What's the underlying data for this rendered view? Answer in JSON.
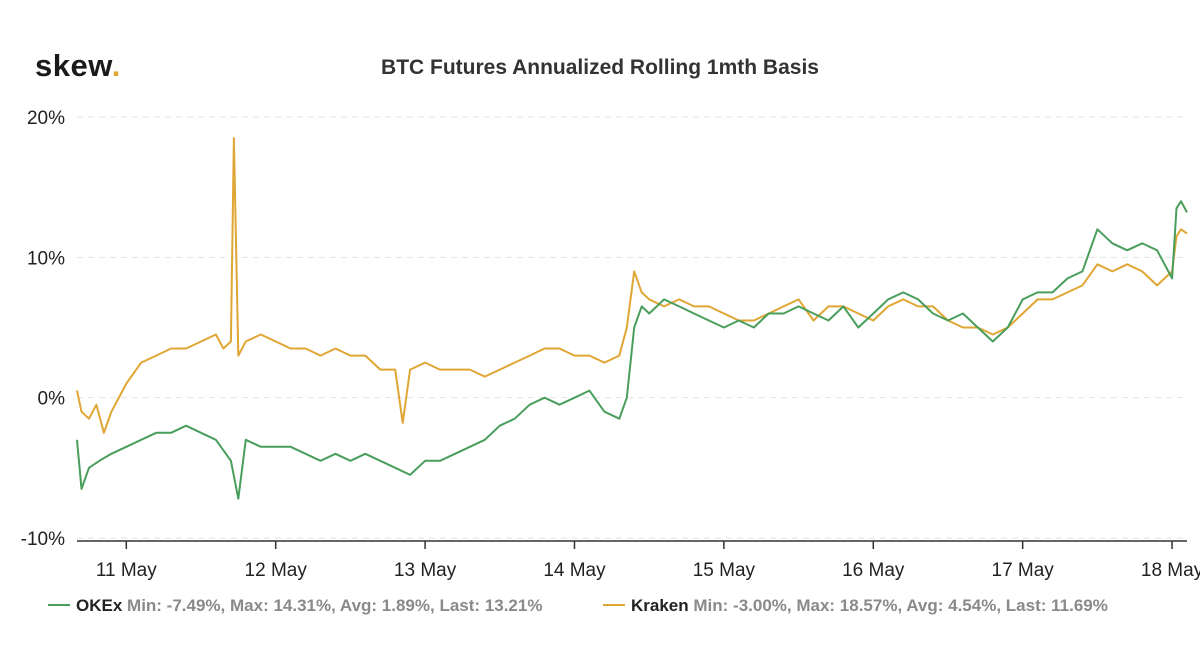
{
  "logo": {
    "text": "skew",
    "dot": "."
  },
  "chart_data": {
    "type": "line",
    "title": "BTC Futures Annualized Rolling 1mth Basis",
    "xlabel": "",
    "ylabel": "",
    "ylim": [
      -10,
      20
    ],
    "yticks": [
      -10,
      0,
      10,
      20
    ],
    "ytick_labels": [
      "-10%",
      "0%",
      "10%",
      "20%"
    ],
    "xlim": [
      -0.33,
      7.1
    ],
    "xticks": [
      0,
      1,
      2,
      3,
      4,
      5,
      6,
      7
    ],
    "xtick_labels": [
      "11 May",
      "12 May",
      "13 May",
      "14 May",
      "15 May",
      "16 May",
      "17 May",
      "18 May"
    ],
    "x_unit": "days from 11 May 00:00",
    "grid": "horizontal dashed",
    "legend_position": "bottom",
    "series": [
      {
        "name": "OKEx",
        "color": "#4a9e5c",
        "stats": "Min: -7.49%, Max: 14.31%, Avg: 1.89%, Last: 13.21%",
        "x": [
          -0.33,
          -0.3,
          -0.25,
          -0.18,
          -0.1,
          0.0,
          0.1,
          0.2,
          0.3,
          0.4,
          0.5,
          0.6,
          0.7,
          0.75,
          0.8,
          0.9,
          1.0,
          1.1,
          1.2,
          1.3,
          1.4,
          1.5,
          1.6,
          1.7,
          1.8,
          1.9,
          2.0,
          2.1,
          2.2,
          2.3,
          2.4,
          2.5,
          2.6,
          2.7,
          2.8,
          2.9,
          3.0,
          3.1,
          3.2,
          3.3,
          3.35,
          3.4,
          3.45,
          3.5,
          3.6,
          3.7,
          3.8,
          3.9,
          4.0,
          4.1,
          4.2,
          4.3,
          4.4,
          4.5,
          4.6,
          4.7,
          4.8,
          4.9,
          5.0,
          5.1,
          5.2,
          5.3,
          5.4,
          5.5,
          5.6,
          5.7,
          5.8,
          5.9,
          6.0,
          6.1,
          6.2,
          6.3,
          6.4,
          6.5,
          6.6,
          6.7,
          6.8,
          6.9,
          7.0,
          7.03,
          7.06,
          7.1
        ],
        "y": [
          -3.0,
          -6.5,
          -5.0,
          -4.5,
          -4.0,
          -3.5,
          -3.0,
          -2.5,
          -2.5,
          -2.0,
          -2.5,
          -3.0,
          -4.5,
          -7.2,
          -3.0,
          -3.5,
          -3.5,
          -3.5,
          -4.0,
          -4.5,
          -4.0,
          -4.5,
          -4.0,
          -4.5,
          -5.0,
          -5.5,
          -4.5,
          -4.5,
          -4.0,
          -3.5,
          -3.0,
          -2.0,
          -1.5,
          -0.5,
          0.0,
          -0.5,
          0.0,
          0.5,
          -1.0,
          -1.5,
          0.0,
          5.0,
          6.5,
          6.0,
          7.0,
          6.5,
          6.0,
          5.5,
          5.0,
          5.5,
          5.0,
          6.0,
          6.0,
          6.5,
          6.0,
          5.5,
          6.5,
          5.0,
          6.0,
          7.0,
          7.5,
          7.0,
          6.0,
          5.5,
          6.0,
          5.0,
          4.0,
          5.0,
          7.0,
          7.5,
          7.5,
          8.5,
          9.0,
          12.0,
          11.0,
          10.5,
          11.0,
          10.5,
          8.5,
          13.5,
          14.0,
          13.2
        ]
      },
      {
        "name": "Kraken",
        "color": "#e0a634",
        "stats": "Min: -3.00%, Max: 18.57%, Avg: 4.54%, Last: 11.69%",
        "x": [
          -0.33,
          -0.3,
          -0.25,
          -0.2,
          -0.15,
          -0.1,
          0.0,
          0.1,
          0.2,
          0.3,
          0.4,
          0.5,
          0.6,
          0.65,
          0.7,
          0.72,
          0.75,
          0.8,
          0.9,
          1.0,
          1.1,
          1.2,
          1.3,
          1.4,
          1.5,
          1.6,
          1.7,
          1.8,
          1.85,
          1.9,
          2.0,
          2.1,
          2.2,
          2.3,
          2.4,
          2.5,
          2.6,
          2.7,
          2.8,
          2.9,
          3.0,
          3.1,
          3.2,
          3.3,
          3.35,
          3.4,
          3.45,
          3.5,
          3.6,
          3.7,
          3.8,
          3.9,
          4.0,
          4.1,
          4.2,
          4.3,
          4.4,
          4.5,
          4.6,
          4.7,
          4.8,
          4.9,
          5.0,
          5.1,
          5.2,
          5.3,
          5.4,
          5.5,
          5.6,
          5.7,
          5.8,
          5.9,
          6.0,
          6.1,
          6.2,
          6.3,
          6.4,
          6.5,
          6.6,
          6.7,
          6.8,
          6.9,
          7.0,
          7.03,
          7.06,
          7.1
        ],
        "y": [
          0.5,
          -1.0,
          -1.5,
          -0.5,
          -2.5,
          -1.0,
          1.0,
          2.5,
          3.0,
          3.5,
          3.5,
          4.0,
          4.5,
          3.5,
          4.0,
          18.5,
          3.0,
          4.0,
          4.5,
          4.0,
          3.5,
          3.5,
          3.0,
          3.5,
          3.0,
          3.0,
          2.0,
          2.0,
          -1.8,
          2.0,
          2.5,
          2.0,
          2.0,
          2.0,
          1.5,
          2.0,
          2.5,
          3.0,
          3.5,
          3.5,
          3.0,
          3.0,
          2.5,
          3.0,
          5.0,
          9.0,
          7.5,
          7.0,
          6.5,
          7.0,
          6.5,
          6.5,
          6.0,
          5.5,
          5.5,
          6.0,
          6.5,
          7.0,
          5.5,
          6.5,
          6.5,
          6.0,
          5.5,
          6.5,
          7.0,
          6.5,
          6.5,
          5.5,
          5.0,
          5.0,
          4.5,
          5.0,
          6.0,
          7.0,
          7.0,
          7.5,
          8.0,
          9.5,
          9.0,
          9.5,
          9.0,
          8.0,
          9.0,
          11.5,
          12.0,
          11.7
        ]
      }
    ]
  }
}
